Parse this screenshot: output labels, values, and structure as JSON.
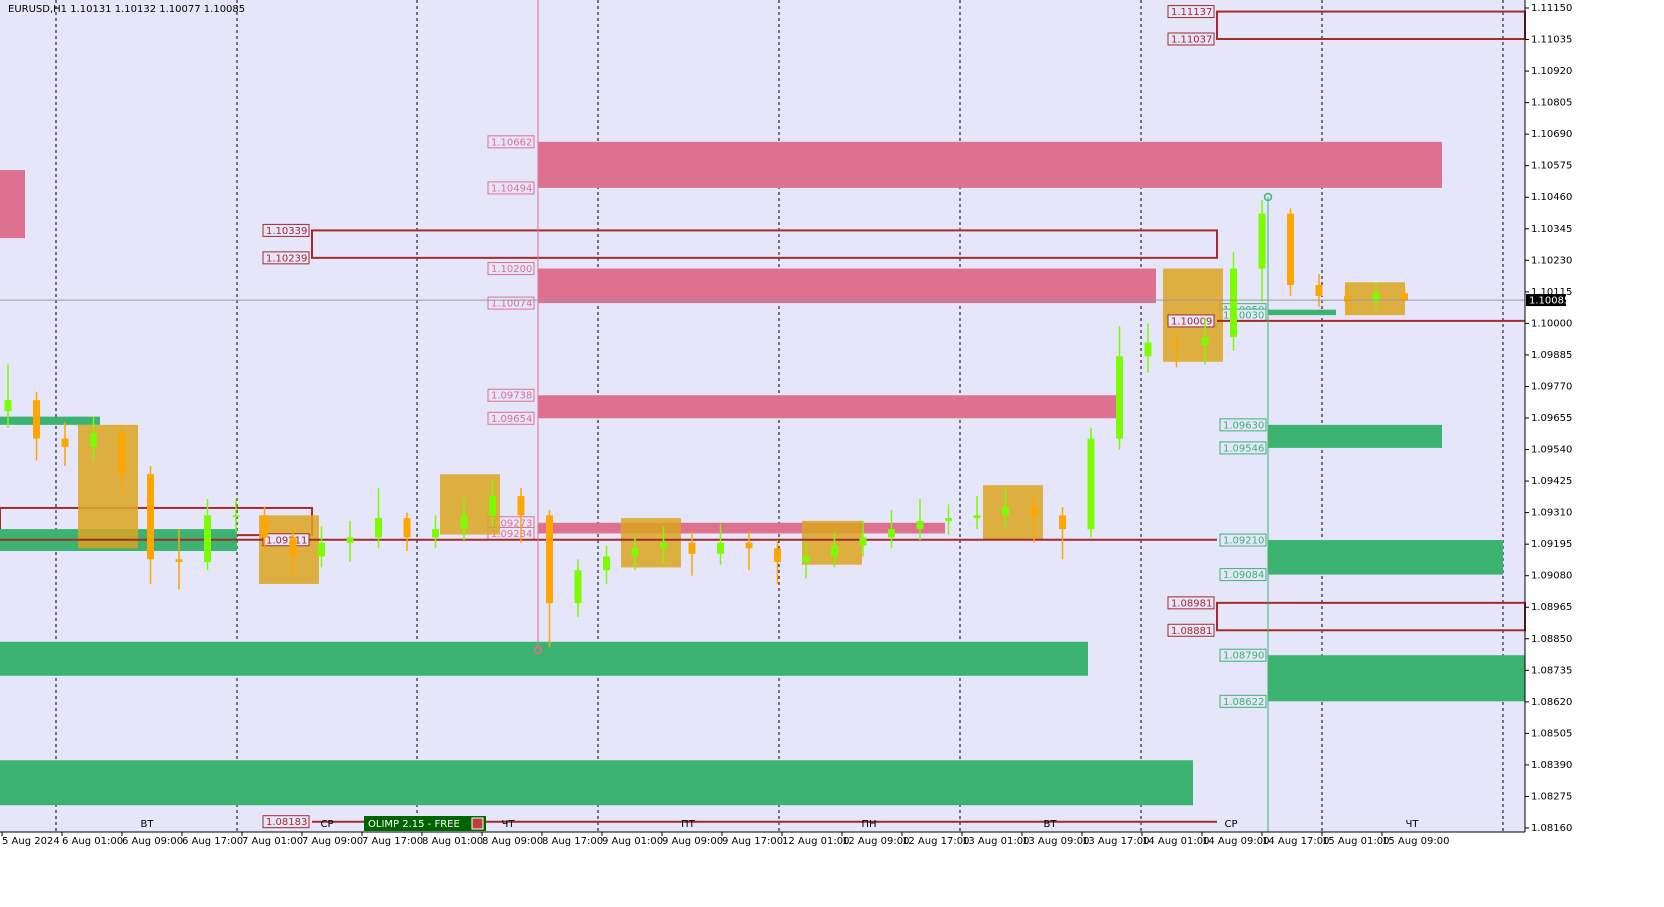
{
  "chart_data": {
    "type": "candlestick",
    "header": "EURUSD,H1  1.10131 1.10132 1.10077 1.10085",
    "indicator": "OLIMP 2.15 - FREE",
    "ylim": [
      1.0816,
      1.1115
    ],
    "yticks": [
      {
        "value": 1.1115,
        "label": "1.11150"
      },
      {
        "value": 1.11035,
        "label": "1.11035"
      },
      {
        "value": 1.1092,
        "label": "1.10920"
      },
      {
        "value": 1.10805,
        "label": "1.10805"
      },
      {
        "value": 1.1069,
        "label": "1.10690"
      },
      {
        "value": 1.10575,
        "label": "1.10575"
      },
      {
        "value": 1.1046,
        "label": "1.10460"
      },
      {
        "value": 1.10345,
        "label": "1.10345"
      },
      {
        "value": 1.1023,
        "label": "1.10230"
      },
      {
        "value": 1.10115,
        "label": "1.10115"
      },
      {
        "value": 1.1,
        "label": "1.10000"
      },
      {
        "value": 1.09885,
        "label": "1.09885"
      },
      {
        "value": 1.0977,
        "label": "1.09770"
      },
      {
        "value": 1.09655,
        "label": "1.09655"
      },
      {
        "value": 1.0954,
        "label": "1.09540"
      },
      {
        "value": 1.09425,
        "label": "1.09425"
      },
      {
        "value": 1.0931,
        "label": "1.09310"
      },
      {
        "value": 1.09195,
        "label": "1.09195"
      },
      {
        "value": 1.0908,
        "label": "1.09080"
      },
      {
        "value": 1.08965,
        "label": "1.08965"
      },
      {
        "value": 1.0885,
        "label": "1.08850"
      },
      {
        "value": 1.08735,
        "label": "1.08735"
      },
      {
        "value": 1.0862,
        "label": "1.08620"
      },
      {
        "value": 1.08505,
        "label": "1.08505"
      },
      {
        "value": 1.0839,
        "label": "1.08390"
      },
      {
        "value": 1.08275,
        "label": "1.08275"
      },
      {
        "value": 1.0816,
        "label": "1.08160"
      }
    ],
    "current_price": {
      "value": 1.10085,
      "label": "1.10085"
    },
    "time_labels": [
      "5 Aug 2024",
      "6 Aug 01:00",
      "6 Aug 09:00",
      "6 Aug 17:00",
      "7 Aug 01:00",
      "7 Aug 09:00",
      "7 Aug 17:00",
      "8 Aug 01:00",
      "8 Aug 09:00",
      "8 Aug 17:00",
      "9 Aug 01:00",
      "9 Aug 09:00",
      "9 Aug 17:00",
      "12 Aug 01:00",
      "12 Aug 09:00",
      "12 Aug 17:00",
      "13 Aug 01:00",
      "13 Aug 09:00",
      "13 Aug 17:00",
      "14 Aug 01:00",
      "14 Aug 09:00",
      "14 Aug 17:00",
      "15 Aug 01:00",
      "15 Aug 09:00"
    ],
    "day_labels": [
      "ВТ",
      "СР",
      "ЧТ",
      "ПТ",
      "ПН",
      "ВТ",
      "СР",
      "ЧТ"
    ],
    "up_color": "#7cfc00",
    "down_color": "#ffa500",
    "open": [
      1.0968,
      1.0972,
      1.0958,
      1.0955,
      1.096,
      1.0945,
      1.0914,
      1.0913,
      1.093,
      1.093,
      1.0922,
      1.0915,
      1.092,
      1.0922,
      1.0929,
      1.0922,
      1.0925,
      1.093,
      1.0937,
      1.093,
      1.0898,
      1.091,
      1.0915,
      1.0918,
      1.092,
      1.0916,
      1.092,
      1.0918,
      1.0913,
      1.0915,
      1.0919,
      1.0922,
      1.0925,
      1.0928,
      1.0929,
      1.093,
      1.0933,
      1.093,
      1.0925,
      1.0958,
      1.0988,
      1.0993,
      1.0992,
      1.0995,
      1.102,
      1.104,
      1.1014,
      1.101,
      1.1008,
      1.1011
    ],
    "high": [
      1.0985,
      1.0975,
      1.0964,
      1.0966,
      1.0963,
      1.0948,
      1.0925,
      1.0936,
      1.0936,
      1.0933,
      1.0926,
      1.0926,
      1.0928,
      1.094,
      1.0931,
      1.093,
      1.0936,
      1.0943,
      1.094,
      1.0932,
      1.0914,
      1.0919,
      1.0922,
      1.0926,
      1.0924,
      1.0927,
      1.0924,
      1.0921,
      1.092,
      1.0924,
      1.0928,
      1.0932,
      1.0936,
      1.0934,
      1.0937,
      1.094,
      1.0938,
      1.0933,
      1.0962,
      1.0999,
      1.1,
      1.0997,
      1.1002,
      1.1026,
      1.1045,
      1.1042,
      1.1018,
      1.1014,
      1.1015,
      1.10132
    ],
    "low": [
      1.0962,
      1.095,
      1.0948,
      1.095,
      1.0938,
      1.0905,
      1.0903,
      1.091,
      1.0924,
      1.0917,
      1.0908,
      1.0911,
      1.0913,
      1.0918,
      1.0917,
      1.0918,
      1.0921,
      1.0926,
      1.092,
      1.0882,
      1.0893,
      1.0905,
      1.091,
      1.0912,
      1.0908,
      1.0912,
      1.091,
      1.0905,
      1.0907,
      1.0911,
      1.0915,
      1.0918,
      1.0921,
      1.0923,
      1.0925,
      1.0926,
      1.092,
      1.0914,
      1.0922,
      1.0954,
      1.0982,
      1.0984,
      1.0985,
      1.099,
      1.1008,
      1.101,
      1.1006,
      1.1003,
      1.1005,
      1.10077
    ],
    "close": [
      1.0972,
      1.0958,
      1.0955,
      1.096,
      1.0945,
      1.0914,
      1.0913,
      1.093,
      1.093,
      1.0922,
      1.0915,
      1.092,
      1.0922,
      1.0929,
      1.0922,
      1.0925,
      1.093,
      1.0937,
      1.093,
      1.0898,
      1.091,
      1.0915,
      1.0918,
      1.092,
      1.0916,
      1.092,
      1.0918,
      1.0913,
      1.0915,
      1.0919,
      1.0922,
      1.0925,
      1.0928,
      1.0929,
      1.093,
      1.0933,
      1.093,
      1.0925,
      1.0958,
      1.0988,
      1.0993,
      1.0992,
      1.0995,
      1.102,
      1.104,
      1.1014,
      1.101,
      1.1008,
      1.1011,
      1.10085
    ],
    "zones": [
      {
        "top": {
          "value": 1.10662,
          "label": "1.10662"
        },
        "bottom": {
          "value": 1.10494,
          "label": "1.10494"
        },
        "color": "#de7090",
        "style": "fill"
      },
      {
        "top": {
          "value": 1.102,
          "label": "1.10200"
        },
        "bottom": {
          "value": 1.10074,
          "label": "1.10074"
        },
        "color": "#de7090",
        "style": "fill"
      },
      {
        "top": {
          "value": 1.09738,
          "label": "1.09738"
        },
        "bottom": {
          "value": 1.09654,
          "label": "1.09654"
        },
        "color": "#de7090",
        "style": "fill"
      },
      {
        "top": {
          "value": 1.09273,
          "label": "1.09273"
        },
        "bottom": {
          "value": 1.09234,
          "label": "1.09234"
        },
        "color": "#de7090",
        "style": "fill"
      },
      {
        "top": {
          "value": 1.10339,
          "label": "1.10339"
        },
        "bottom": {
          "value": 1.10239,
          "label": "1.10239"
        },
        "color": "#a52a2a",
        "style": "outline"
      },
      {
        "top": {
          "value": 1.11137,
          "label": "1.11137"
        },
        "bottom": {
          "value": 1.11037,
          "label": "1.11037"
        },
        "color": "#a52a2a",
        "style": "outline"
      },
      {
        "top": {
          "value": 1.08981,
          "label": "1.08981"
        },
        "bottom": {
          "value": 1.08881,
          "label": "1.08881"
        },
        "color": "#a52a2a",
        "style": "outline"
      },
      {
        "top": {
          "value": 1.1005,
          "label": "1.10050"
        },
        "bottom": {
          "value": 1.1003,
          "label": "1.10030"
        },
        "color": "#3cb371",
        "style": "fill"
      },
      {
        "top": {
          "value": 1.0963,
          "label": "1.09630"
        },
        "bottom": {
          "value": 1.09546,
          "label": "1.09546"
        },
        "color": "#3cb371",
        "style": "fill"
      },
      {
        "top": {
          "value": 1.0921,
          "label": "1.09210"
        },
        "bottom": {
          "value": 1.09084,
          "label": "1.09084"
        },
        "color": "#3cb371",
        "style": "fill"
      },
      {
        "top": {
          "value": 1.0879,
          "label": "1.08790"
        },
        "bottom": {
          "value": 1.08622,
          "label": "1.08622"
        },
        "color": "#3cb371",
        "style": "fill"
      },
      {
        "top": 1.08839,
        "bottom": 1.08715,
        "color": "#3cb371",
        "style": "fill"
      },
      {
        "top": 1.08407,
        "bottom": 1.08243,
        "color": "#3cb371",
        "style": "fill"
      },
      {
        "top": 1.09327,
        "bottom": 1.09228,
        "color": "#a52a2a",
        "style": "outline"
      },
      {
        "top": 1.10559,
        "bottom": 1.10311,
        "color": "#de7090",
        "style": "fill"
      },
      {
        "top": 1.0966,
        "bottom": 1.0963,
        "color": "#3cb371",
        "style": "fill"
      },
      {
        "top": 1.0925,
        "bottom": 1.0917,
        "color": "#3cb371",
        "style": "fill"
      }
    ],
    "lines": [
      {
        "level": {
          "value": 1.10009,
          "label": "1.10009"
        },
        "color": "#a52a2a"
      },
      {
        "level": {
          "value": 1.09211,
          "label": "1.09211"
        },
        "color": "#a52a2a"
      },
      {
        "level": {
          "value": 1.08183,
          "label": "1.08183"
        },
        "color": "#a52a2a"
      }
    ],
    "boxes": [
      [
        1.0963,
        1.0918
      ],
      [
        1.093,
        1.0905
      ],
      [
        1.0945,
        1.0923
      ],
      [
        1.0929,
        1.0911
      ],
      [
        1.0928,
        1.0912
      ],
      [
        1.0941,
        1.0921
      ],
      [
        1.102,
        1.0986
      ],
      [
        1.1015,
        1.1003
      ]
    ],
    "box_color": "#daa520"
  }
}
